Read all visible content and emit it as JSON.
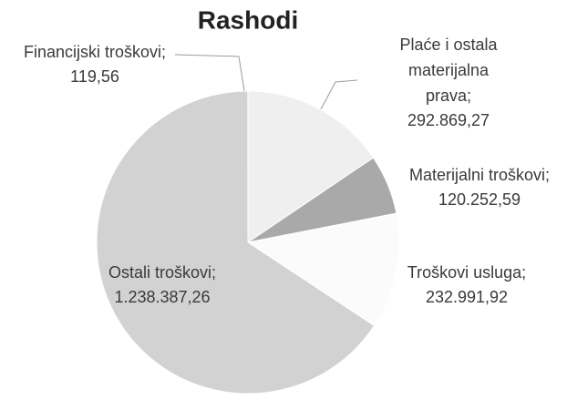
{
  "chart_data": {
    "type": "pie",
    "title": "Rashodi",
    "categories": [
      "Plaće i ostala materijalna prava;",
      "Materijalni troškovi;",
      "Troškovi usluga;",
      "Ostali troškovi;",
      "Financijski troškovi;"
    ],
    "values": [
      292869.27,
      120252.59,
      232991.92,
      1238387.26,
      119.56
    ],
    "value_labels": [
      "292.869,27",
      "120.252,59",
      "232.991,92",
      "1.238.387,26",
      "119,56"
    ],
    "colors": [
      "#efefef",
      "#a9a9a9",
      "#fbfbfb",
      "#d2d2d2",
      "#8a8a8a"
    ]
  }
}
